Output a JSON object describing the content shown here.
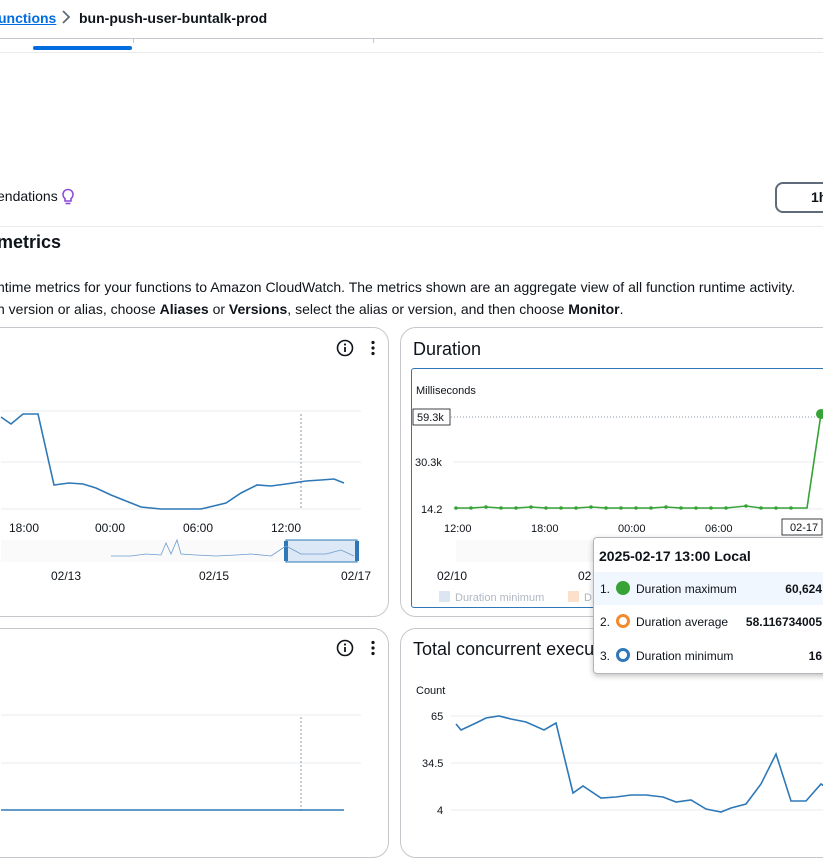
{
  "breadcrumb": {
    "parent": "unctions",
    "separator": ">",
    "current": "bun-push-user-buntalk-prod"
  },
  "recommendations_label": "endations",
  "time_range_button": "1h",
  "section": {
    "title": "metrics",
    "desc_line1": "ntime metrics for your functions to Amazon CloudWatch. The metrics shown are an aggregate view of all function runtime activity.",
    "desc_line2_a": "n version or alias, choose ",
    "desc_line2_b": "Aliases",
    "desc_line2_c": " or ",
    "desc_line2_d": "Versions",
    "desc_line2_e": ", select the alias or version, and then choose ",
    "desc_line2_f": "Monitor",
    "desc_line2_g": "."
  },
  "card_top_left": {
    "x_ticks": [
      "18:00",
      "00:00",
      "06:00",
      "12:00"
    ],
    "nav_ticks": [
      "02/13",
      "02/15",
      "02/17"
    ],
    "line_color": "#2e78b7"
  },
  "card_duration": {
    "title": "Duration",
    "unit": "Milliseconds",
    "y_ticks": [
      "59.3k",
      "30.3k",
      "14.2"
    ],
    "x_ticks": [
      "12:00",
      "18:00",
      "00:00",
      "06:00",
      "02-17"
    ],
    "nav_ticks": [
      "02/10",
      "02"
    ],
    "legend": [
      "Duration minimum",
      "D"
    ],
    "line_color": "#37a337"
  },
  "card_bottom_left": {
    "line_color": "#2e78b7"
  },
  "card_concurrent": {
    "title": "Total concurrent execu",
    "unit": "Count",
    "y_ticks": [
      "65",
      "34.5",
      "4"
    ],
    "line_color": "#2e78b7"
  },
  "tooltip": {
    "title": "2025-02-17 13:00 Local",
    "rows": [
      {
        "index": "1.",
        "label": "Duration maximum",
        "value": "60,624",
        "color": "#37a337",
        "style": "filled"
      },
      {
        "index": "2.",
        "label": "Duration average",
        "value": "58.116734005",
        "color": "#f38a2c",
        "style": "ring"
      },
      {
        "index": "3.",
        "label": "Duration minimum",
        "value": "16",
        "color": "#2e78b7",
        "style": "ring"
      }
    ]
  },
  "icons": [
    "chevron-right-icon",
    "lightbulb-icon",
    "info-icon",
    "more-vertical-icon"
  ]
}
